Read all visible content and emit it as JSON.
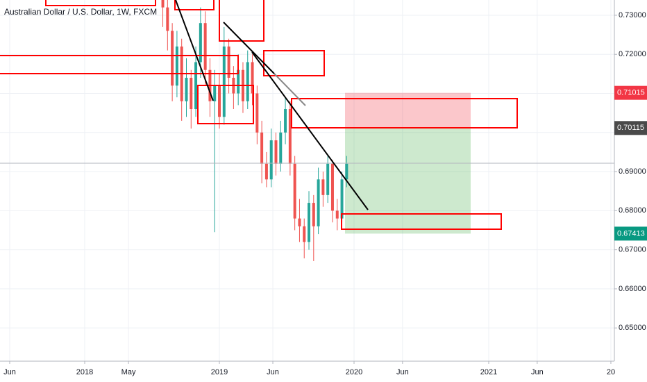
{
  "chart_data": {
    "type": "candlestick",
    "title": "Australian Dollar / U.S. Dollar, 1W, FXCM",
    "x": [
      2018.58,
      2018.615,
      2018.65,
      2018.685,
      2018.72,
      2018.755,
      2018.79,
      2018.825,
      2018.86,
      2018.895,
      2018.93,
      2018.965,
      2019.0,
      2019.035,
      2019.07,
      2019.105,
      2019.14,
      2019.175,
      2019.21,
      2019.245,
      2019.28,
      2019.315,
      2019.35,
      2019.385,
      2019.42,
      2019.455,
      2019.49,
      2019.525,
      2019.56,
      2019.595,
      2019.63,
      2019.665,
      2019.7,
      2019.735,
      2019.77,
      2019.805,
      2019.84,
      2019.875,
      2019.91,
      2019.945
    ],
    "open": [
      0.735,
      0.732,
      0.726,
      0.712,
      0.722,
      0.708,
      0.714,
      0.706,
      0.718,
      0.728,
      0.716,
      0.708,
      0.712,
      0.704,
      0.722,
      0.714,
      0.71,
      0.716,
      0.708,
      0.718,
      0.71,
      0.7,
      0.692,
      0.688,
      0.698,
      0.692,
      0.7,
      0.706,
      0.692,
      0.678,
      0.676,
      0.672,
      0.682,
      0.676,
      0.688,
      0.684,
      0.692,
      0.68,
      0.678,
      0.688
    ],
    "high": [
      0.737,
      0.736,
      0.728,
      0.726,
      0.724,
      0.719,
      0.716,
      0.722,
      0.732,
      0.731,
      0.719,
      0.716,
      0.715,
      0.727,
      0.724,
      0.717,
      0.72,
      0.718,
      0.721,
      0.72,
      0.712,
      0.703,
      0.695,
      0.701,
      0.7,
      0.703,
      0.709,
      0.708,
      0.694,
      0.683,
      0.678,
      0.685,
      0.684,
      0.691,
      0.69,
      0.694,
      0.693,
      0.683,
      0.69,
      0.694
    ],
    "low": [
      0.727,
      0.721,
      0.708,
      0.709,
      0.703,
      0.704,
      0.701,
      0.704,
      0.714,
      0.712,
      0.704,
      0.6745,
      0.701,
      0.702,
      0.71,
      0.706,
      0.707,
      0.705,
      0.706,
      0.707,
      0.697,
      0.687,
      0.686,
      0.686,
      0.689,
      0.69,
      0.697,
      0.689,
      0.675,
      0.672,
      0.6678,
      0.67,
      0.6671,
      0.674,
      0.681,
      0.682,
      0.677,
      0.675,
      0.677,
      0.686
    ],
    "close": [
      0.732,
      0.726,
      0.712,
      0.722,
      0.708,
      0.714,
      0.706,
      0.718,
      0.728,
      0.716,
      0.708,
      0.712,
      0.704,
      0.722,
      0.714,
      0.71,
      0.716,
      0.708,
      0.718,
      0.71,
      0.7,
      0.692,
      0.688,
      0.698,
      0.692,
      0.7,
      0.706,
      0.692,
      0.678,
      0.676,
      0.672,
      0.682,
      0.676,
      0.688,
      0.684,
      0.692,
      0.68,
      0.678,
      0.688,
      0.692
    ],
    "up_color": "#26a69a",
    "down_color": "#ef5350",
    "xlim": [
      2017.371,
      2021.933
    ],
    "ylim": [
      0.6415,
      0.7339
    ],
    "xticks": [
      {
        "value": 2017.443,
        "label": "Jun"
      },
      2018,
      {
        "value": 2018.325,
        "label": "May"
      },
      2019,
      {
        "value": 2019.397,
        "label": "Jun"
      },
      2020,
      {
        "value": 2020.36,
        "label": "Jun"
      },
      2021,
      {
        "value": 2021.36,
        "label": "Jun"
      },
      {
        "value": 2021.907,
        "label": "20"
      }
    ],
    "yticks": [
      {
        "value": 0.73,
        "label": "0.73000"
      },
      {
        "value": 0.72,
        "label": "0.72000"
      },
      {
        "value": 0.71,
        "label": "0.71000"
      },
      {
        "value": 0.7,
        "label": "0.70000"
      },
      {
        "value": 0.69,
        "label": "0.69000"
      },
      {
        "value": 0.68,
        "label": "0.68000"
      },
      {
        "value": 0.67,
        "label": "0.67000"
      },
      {
        "value": 0.66,
        "label": "0.66000"
      },
      {
        "value": 0.65,
        "label": "0.65000"
      }
    ],
    "price_labels": [
      {
        "value": 0.71015,
        "label": "0.71015",
        "color": "#f23645"
      },
      {
        "value": 0.70115,
        "label": "0.70115",
        "color": "#4a4a4a"
      },
      {
        "value": 0.67413,
        "label": "0.67413",
        "color": "#089981"
      }
    ],
    "grid": true
  }
}
